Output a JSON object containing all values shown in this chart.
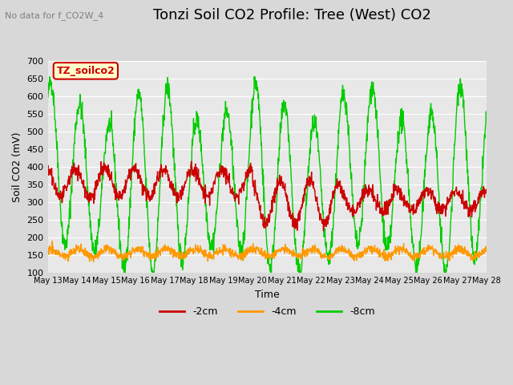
{
  "title": "Tonzi Soil CO2 Profile: Tree (West) CO2",
  "suptitle": "No data for f_CO2W_4",
  "ylabel": "Soil CO2 (mV)",
  "xlabel": "Time",
  "ylim": [
    100,
    700
  ],
  "xlim": [
    0,
    15
  ],
  "x_tick_labels": [
    "May 13",
    "May 14",
    "May 15",
    "May 16",
    "May 17",
    "May 18",
    "May 19",
    "May 20",
    "May 21",
    "May 22",
    "May 23",
    "May 24",
    "May 25",
    "May 26",
    "May 27",
    "May 28"
  ],
  "legend_labels": [
    "-2cm",
    "-4cm",
    "-8cm"
  ],
  "legend_colors": [
    "#cc0000",
    "#ff9900",
    "#00cc00"
  ],
  "line_colors": [
    "#cc0000",
    "#ff9900",
    "#00cc00"
  ],
  "box_label": "TZ_soilco2",
  "box_facecolor": "#ffffcc",
  "box_edgecolor": "#cc0000",
  "bg_color": "#d8d8d8",
  "plot_bg_color": "#e8e8e8",
  "grid_color": "#ffffff",
  "title_fontsize": 13,
  "axis_fontsize": 9,
  "yticks": [
    100,
    150,
    200,
    250,
    300,
    350,
    400,
    450,
    500,
    550,
    600,
    650,
    700
  ]
}
